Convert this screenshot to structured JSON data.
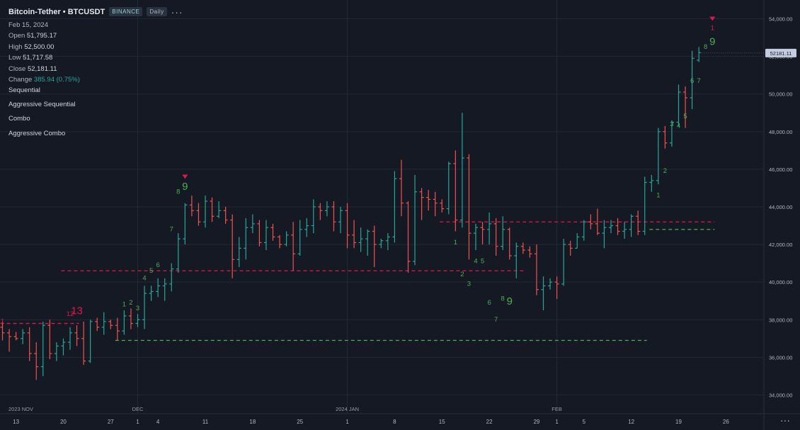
{
  "header": {
    "symbol": "Bitcoin-Tether • BTCUSDT",
    "exchange": "BINANCE",
    "timeframe": "Daily",
    "more_icon": "ellipsis-icon"
  },
  "ohlc": {
    "date": "Feb 15, 2024",
    "open_label": "Open",
    "open": "51,795.17",
    "high_label": "High",
    "high": "52,500.00",
    "low_label": "Low",
    "low": "51,717.58",
    "close_label": "Close",
    "close": "52,181.11",
    "change_label": "Change",
    "change": "385.94 (0.75%)"
  },
  "indicators": [
    "Sequential",
    "Aggressive Sequential",
    "Combo",
    "Aggressive Combo"
  ],
  "colors": {
    "up": "#26a69a",
    "down": "#ef5350",
    "buy": "#4caf50",
    "sell": "#e0174f",
    "grid": "#232836",
    "bg": "#151924"
  },
  "chart_data": {
    "type": "ohlc",
    "ylim": [
      33000,
      55000
    ],
    "y_ticks": [
      "34,000.00",
      "36,000.00",
      "38,000.00",
      "40,000.00",
      "42,000.00",
      "44,000.00",
      "46,000.00",
      "48,000.00",
      "50,000.00",
      "52,000.00",
      "54,000.00"
    ],
    "y_tick_values": [
      34000,
      36000,
      38000,
      40000,
      42000,
      44000,
      46000,
      48000,
      50000,
      52000,
      54000
    ],
    "last_price": 52181.11,
    "last_price_label": "52181.11",
    "x_ticks": [
      {
        "i": 2,
        "label": "13"
      },
      {
        "i": 9,
        "label": "20"
      },
      {
        "i": 16,
        "label": "27"
      },
      {
        "i": 20,
        "label": "1"
      },
      {
        "i": 23,
        "label": "4"
      },
      {
        "i": 30,
        "label": "11"
      },
      {
        "i": 37,
        "label": "18"
      },
      {
        "i": 44,
        "label": "25"
      },
      {
        "i": 51,
        "label": "1"
      },
      {
        "i": 58,
        "label": "8"
      },
      {
        "i": 65,
        "label": "15"
      },
      {
        "i": 72,
        "label": "22"
      },
      {
        "i": 79,
        "label": "29"
      },
      {
        "i": 82,
        "label": "1"
      },
      {
        "i": 86,
        "label": "5"
      },
      {
        "i": 93,
        "label": "12"
      },
      {
        "i": 100,
        "label": "19"
      },
      {
        "i": 107,
        "label": "26"
      }
    ],
    "month_labels": [
      {
        "i": 0,
        "label": "2023 NOV"
      },
      {
        "i": 20,
        "label": "DEC"
      },
      {
        "i": 51,
        "label": "2024 JAN"
      },
      {
        "i": 82,
        "label": "FEB"
      }
    ],
    "candles": [
      [
        37600,
        37900,
        36900,
        37300
      ],
      [
        37300,
        37500,
        36300,
        37100
      ],
      [
        37100,
        37350,
        36900,
        37000
      ],
      [
        37000,
        37500,
        36700,
        37300
      ],
      [
        37300,
        37600,
        35800,
        36200
      ],
      [
        36200,
        36800,
        34800,
        35500
      ],
      [
        35500,
        37900,
        35000,
        37700
      ],
      [
        37700,
        38000,
        35900,
        36200
      ],
      [
        36200,
        36800,
        35800,
        36600
      ],
      [
        36600,
        37000,
        36100,
        36800
      ],
      [
        36800,
        37600,
        36400,
        37300
      ],
      [
        37300,
        37700,
        36600,
        37000
      ],
      [
        37000,
        37900,
        35600,
        35800
      ],
      [
        35800,
        38000,
        35700,
        37900
      ],
      [
        37900,
        38100,
        37400,
        37600
      ],
      [
        37600,
        38400,
        37200,
        37900
      ],
      [
        37900,
        38000,
        37500,
        37700
      ],
      [
        37700,
        38100,
        36900,
        37400
      ],
      [
        37400,
        38500,
        37200,
        38200
      ],
      [
        38200,
        38600,
        37500,
        37800
      ],
      [
        37800,
        38300,
        37600,
        38000
      ],
      [
        38000,
        39800,
        37500,
        39400
      ],
      [
        39400,
        39800,
        39000,
        39500
      ],
      [
        39500,
        40200,
        39200,
        39800
      ],
      [
        39800,
        40200,
        39000,
        39900
      ],
      [
        39900,
        41000,
        39500,
        40700
      ],
      [
        40700,
        42600,
        40500,
        42300
      ],
      [
        42300,
        44200,
        42000,
        44100
      ],
      [
        44100,
        44600,
        43500,
        43800
      ],
      [
        43800,
        44200,
        43000,
        43200
      ],
      [
        43200,
        44600,
        42900,
        44300
      ],
      [
        44300,
        44500,
        43200,
        43500
      ],
      [
        43500,
        44300,
        43400,
        43800
      ],
      [
        43800,
        44000,
        43100,
        43300
      ],
      [
        43300,
        43600,
        40200,
        41200
      ],
      [
        41200,
        42400,
        40800,
        41800
      ],
      [
        41800,
        43400,
        41200,
        42900
      ],
      [
        42900,
        43600,
        42600,
        43100
      ],
      [
        43100,
        43300,
        41900,
        42100
      ],
      [
        42100,
        43300,
        41700,
        42900
      ],
      [
        42900,
        43100,
        42200,
        42400
      ],
      [
        42400,
        42500,
        41800,
        42000
      ],
      [
        42000,
        42700,
        41900,
        42500
      ],
      [
        42500,
        43200,
        40600,
        41500
      ],
      [
        41500,
        43300,
        41400,
        42800
      ],
      [
        42800,
        43400,
        42400,
        43000
      ],
      [
        43000,
        44400,
        42600,
        44000
      ],
      [
        44000,
        44200,
        43300,
        43800
      ],
      [
        43800,
        44300,
        43500,
        44000
      ],
      [
        44000,
        44300,
        42700,
        43200
      ],
      [
        43200,
        44000,
        42600,
        43800
      ],
      [
        43800,
        44200,
        41800,
        42500
      ],
      [
        42500,
        43300,
        41800,
        42100
      ],
      [
        42100,
        42900,
        41600,
        42300
      ],
      [
        42300,
        42800,
        41400,
        42700
      ],
      [
        42700,
        43000,
        40800,
        42000
      ],
      [
        42000,
        42300,
        41800,
        42200
      ],
      [
        42200,
        42600,
        41700,
        42400
      ],
      [
        42400,
        45900,
        42100,
        45500
      ],
      [
        45500,
        46500,
        43500,
        44200
      ],
      [
        44200,
        44300,
        40500,
        41100
      ],
      [
        41100,
        45700,
        40900,
        44800
      ],
      [
        44800,
        45000,
        43300,
        44500
      ],
      [
        44500,
        44900,
        43800,
        44400
      ],
      [
        44400,
        44800,
        43500,
        44200
      ],
      [
        44200,
        44400,
        43700,
        43900
      ],
      [
        43900,
        46400,
        43600,
        46300
      ],
      [
        46300,
        47000,
        42700,
        43300
      ],
      [
        43300,
        49000,
        42900,
        46600
      ],
      [
        46600,
        46800,
        41200,
        42600
      ],
      [
        42600,
        43100,
        41700,
        42900
      ],
      [
        42900,
        43200,
        42000,
        42800
      ],
      [
        42800,
        43700,
        42000,
        43100
      ],
      [
        43100,
        43400,
        41400,
        41900
      ],
      [
        41900,
        43500,
        41700,
        42800
      ],
      [
        42800,
        42900,
        41200,
        41400
      ],
      [
        41400,
        42100,
        40200,
        41900
      ],
      [
        41900,
        42100,
        41500,
        41700
      ],
      [
        41700,
        41900,
        41300,
        41500
      ],
      [
        41500,
        42000,
        39300,
        39600
      ],
      [
        39600,
        40300,
        38500,
        39800
      ],
      [
        39800,
        40200,
        39600,
        40000
      ],
      [
        40000,
        40300,
        39100,
        39900
      ],
      [
        39900,
        42300,
        39800,
        42000
      ],
      [
        42000,
        42200,
        41400,
        41800
      ],
      [
        41800,
        42600,
        41800,
        42400
      ],
      [
        42400,
        43300,
        42200,
        43200
      ],
      [
        43200,
        43600,
        42800,
        43100
      ],
      [
        43100,
        43900,
        42500,
        42600
      ],
      [
        42600,
        43300,
        41800,
        42900
      ],
      [
        42900,
        43300,
        42600,
        43000
      ],
      [
        43000,
        43400,
        42500,
        42700
      ],
      [
        42700,
        43200,
        42300,
        42800
      ],
      [
        42800,
        43600,
        42400,
        43500
      ],
      [
        43500,
        43800,
        42500,
        42700
      ],
      [
        42700,
        45600,
        42500,
        45300
      ],
      [
        45300,
        45700,
        44800,
        45400
      ],
      [
        45400,
        48200,
        45200,
        48000
      ],
      [
        48000,
        48300,
        47100,
        47400
      ],
      [
        47400,
        48600,
        47200,
        48500
      ],
      [
        48500,
        50500,
        48300,
        50100
      ],
      [
        50100,
        50400,
        48200,
        49800
      ],
      [
        49800,
        52300,
        49200,
        51900
      ],
      [
        51800,
        52500,
        51700,
        52200
      ]
    ],
    "setup_labels": [
      {
        "i": 0,
        "text": "1",
        "color": "sell",
        "y": 37800
      },
      {
        "i": 10,
        "text": "12",
        "color": "sell",
        "y": 38200
      },
      {
        "i": 11,
        "text": "13",
        "color": "sell",
        "y": 38300,
        "big": true
      },
      {
        "i": 18,
        "text": "1",
        "color": "buy",
        "y": 38700
      },
      {
        "i": 19,
        "text": "2",
        "color": "buy",
        "y": 38800
      },
      {
        "i": 20,
        "text": "3",
        "color": "buy",
        "y": 38500
      },
      {
        "i": 21,
        "text": "4",
        "color": "buy",
        "y": 40100
      },
      {
        "i": 22,
        "text": "5",
        "color": "buy",
        "y": 40500
      },
      {
        "i": 23,
        "text": "6",
        "color": "buy",
        "y": 40800
      },
      {
        "i": 25,
        "text": "7",
        "color": "buy",
        "y": 42700
      },
      {
        "i": 26,
        "text": "8",
        "color": "buy",
        "y": 44700
      },
      {
        "i": 27,
        "text": "9",
        "color": "buy",
        "y": 44900,
        "big": true
      },
      {
        "i": 67,
        "text": "1",
        "color": "buy",
        "y": 42000
      },
      {
        "i": 68,
        "text": "2",
        "color": "buy",
        "y": 40300
      },
      {
        "i": 69,
        "text": "3",
        "color": "buy",
        "y": 39800
      },
      {
        "i": 70,
        "text": "4",
        "color": "buy",
        "y": 41000
      },
      {
        "i": 71,
        "text": "5",
        "color": "buy",
        "y": 41000
      },
      {
        "i": 72,
        "text": "6",
        "color": "buy",
        "y": 38800
      },
      {
        "i": 73,
        "text": "7",
        "color": "buy",
        "y": 37900
      },
      {
        "i": 74,
        "text": "8",
        "color": "buy",
        "y": 39000
      },
      {
        "i": 75,
        "text": "9",
        "color": "buy",
        "y": 38800,
        "big": true
      },
      {
        "i": 97,
        "text": "1",
        "color": "buy",
        "y": 44500
      },
      {
        "i": 98,
        "text": "2",
        "color": "buy",
        "y": 45800
      },
      {
        "i": 99,
        "text": "3",
        "color": "buy",
        "y": 48300
      },
      {
        "i": 100,
        "text": "4",
        "color": "buy",
        "y": 48200
      },
      {
        "i": 101,
        "text": "5",
        "color": "buy",
        "y": 48700
      },
      {
        "i": 102,
        "text": "6",
        "color": "buy",
        "y": 50600
      },
      {
        "i": 103,
        "text": "7",
        "color": "buy",
        "y": 50600
      },
      {
        "i": 104,
        "text": "8",
        "color": "buy",
        "y": 52400
      },
      {
        "i": 105,
        "text": "9",
        "color": "buy",
        "y": 52600,
        "big": true
      },
      {
        "i": 105,
        "text": "1",
        "color": "sell",
        "y": 53400
      }
    ],
    "arrows": [
      {
        "i": 27,
        "y": 45600
      },
      {
        "i": 105,
        "y": 54000
      }
    ],
    "levels": [
      {
        "from": 0,
        "to": 11,
        "y": 37800,
        "color": "sell"
      },
      {
        "from": 9,
        "to": 77,
        "y": 40600,
        "color": "sell"
      },
      {
        "from": 17,
        "to": 95,
        "y": 36900,
        "color": "buy"
      },
      {
        "from": 65,
        "to": 105,
        "y": 43200,
        "color": "sell"
      },
      {
        "from": 96,
        "to": 105,
        "y": 42800,
        "color": "buy"
      }
    ]
  }
}
